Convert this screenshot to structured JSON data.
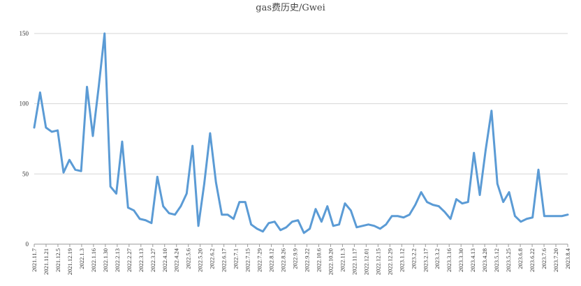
{
  "chart_data": {
    "type": "line",
    "title": "gas费历史/Gwei",
    "xlabel": "",
    "ylabel": "",
    "ylim": [
      0,
      150
    ],
    "yticks": [
      0,
      50,
      100,
      150
    ],
    "grid": true,
    "legend": "none",
    "line_color": "#5b9bd5",
    "values": [
      83,
      108,
      83,
      80,
      81,
      51,
      60,
      53,
      52,
      112,
      77,
      112,
      150,
      41,
      36,
      73,
      26,
      24,
      18,
      17,
      15,
      48,
      27,
      22,
      21,
      27,
      36,
      70,
      13,
      43,
      79,
      44,
      21,
      21,
      18,
      30,
      30,
      14,
      11,
      9,
      15,
      16,
      10,
      12,
      16,
      17,
      8,
      11,
      25,
      16,
      27,
      13,
      14,
      29,
      24,
      12,
      13,
      14,
      13,
      11,
      14,
      20,
      20,
      19,
      21,
      28,
      37,
      30,
      28,
      27,
      23,
      18,
      32,
      29,
      30,
      65,
      35,
      67,
      95,
      43,
      30,
      37,
      20,
      16,
      18,
      19,
      53,
      20,
      20,
      20,
      20,
      21
    ],
    "x_labels": [
      "2021.11.7",
      "2021.11.21",
      "2021.12.5",
      "2021.12.19",
      "2022.1.3",
      "2022.1.16",
      "2022.1.30",
      "2022.2.13",
      "2022.2.27",
      "2022.3.13",
      "2022.3.27",
      "2022.4.10",
      "2022.4.24",
      "2022.5.6",
      "2022.5.20",
      "2022.6.2",
      "2022.6.17",
      "2022.7.1",
      "2022.7.15",
      "2022.7.29",
      "2022.8.12",
      "2022.8.26",
      "2022.9.9",
      "2022.9.22",
      "2022.10.6",
      "2022.10.20",
      "2022.11.3",
      "2022.11.17",
      "2022.12.01",
      "2022.12.15",
      "2022.12.29",
      "2023.1.12",
      "2023.2.2",
      "2023.2.17",
      "2023.3.2",
      "2023.3.16",
      "2023.3.30",
      "2023.4.13",
      "2023.4.28",
      "2023.5.12",
      "2023.5.25",
      "2023.6.8",
      "2023.6.22",
      "2023.7.6",
      "2023.7.20",
      "2023.8.4"
    ]
  }
}
